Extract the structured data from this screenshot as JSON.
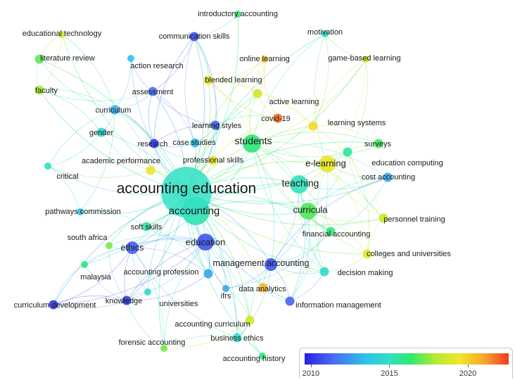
{
  "colors": {
    "y2010": "#3b3fe8",
    "y2015": "#2ad6c6",
    "y2020": "#f2e130",
    "y2022": "#ee3a20"
  },
  "legend": {
    "ticks": [
      {
        "label": "2010",
        "value": 2010
      },
      {
        "label": "2015",
        "value": 2015
      },
      {
        "label": "2020",
        "value": 2020
      }
    ],
    "range": [
      2009.6,
      2022.6
    ]
  },
  "terms": [
    {
      "id": "accounting-education",
      "label": "accounting education",
      "year": 2015.0,
      "weight": 10
    },
    {
      "id": "accounting",
      "label": "accounting",
      "year": 2015.3,
      "weight": 6
    },
    {
      "id": "students",
      "label": "students",
      "year": 2016.2,
      "weight": 5
    },
    {
      "id": "teaching",
      "label": "teaching",
      "year": 2015.1,
      "weight": 5
    },
    {
      "id": "curricula",
      "label": "curricula",
      "year": 2016.8,
      "weight": 4
    },
    {
      "id": "e-learning",
      "label": "e-learning",
      "year": 2019.2,
      "weight": 4
    },
    {
      "id": "education",
      "label": "education",
      "year": 2010.8,
      "weight": 4
    },
    {
      "id": "ethics",
      "label": "ethics",
      "year": 2011.2,
      "weight": 3
    },
    {
      "id": "introductory-accounting",
      "label": "introductory accounting",
      "year": 2016.5,
      "weight": 1
    },
    {
      "id": "educational-technology",
      "label": "educational technology",
      "year": 2018.8,
      "weight": 1
    },
    {
      "id": "communication-skills",
      "label": "communication skills",
      "year": 2010.8,
      "weight": 2
    },
    {
      "id": "motivation",
      "label": "motivation",
      "year": 2014.5,
      "weight": 1
    },
    {
      "id": "literature-review",
      "label": "literature review",
      "year": 2017.0,
      "weight": 2
    },
    {
      "id": "online-learning",
      "label": "online learning",
      "year": 2020.4,
      "weight": 1
    },
    {
      "id": "game-based-learning",
      "label": "game-based learning",
      "year": 2018.8,
      "weight": 1
    },
    {
      "id": "action-research",
      "label": "action research",
      "year": 2013.5,
      "weight": 1
    },
    {
      "id": "blended-learning",
      "label": "blended learning",
      "year": 2019.2,
      "weight": 2
    },
    {
      "id": "faculty",
      "label": "faculty",
      "year": 2017.8,
      "weight": 2
    },
    {
      "id": "assessment",
      "label": "assessment",
      "year": 2011.6,
      "weight": 2
    },
    {
      "id": "active-learning",
      "label": "active learning",
      "year": 2018.6,
      "weight": 2
    },
    {
      "id": "curriculum",
      "label": "curriculum",
      "year": 2013.0,
      "weight": 2
    },
    {
      "id": "covid-19",
      "label": "covid-19",
      "year": 2021.8,
      "weight": 2
    },
    {
      "id": "learning-styles",
      "label": "learning styles",
      "year": 2011.0,
      "weight": 2
    },
    {
      "id": "learning-systems",
      "label": "learning systems",
      "year": 2019.8,
      "weight": 2
    },
    {
      "id": "gender",
      "label": "gender",
      "year": 2014.4,
      "weight": 2
    },
    {
      "id": "research",
      "label": "research",
      "year": 2010.2,
      "weight": 2
    },
    {
      "id": "case-studies",
      "label": "case studies",
      "year": 2013.6,
      "weight": 2
    },
    {
      "id": "surveys",
      "label": "surveys",
      "year": 2016.6,
      "weight": 2
    },
    {
      "id": "academic-performance",
      "label": "academic performance",
      "year": 2019.4,
      "weight": 2
    },
    {
      "id": "professional-skills",
      "label": "professional skills",
      "year": 2019.3,
      "weight": 2
    },
    {
      "id": "education-computing",
      "label": "education computing",
      "year": 2015.6,
      "weight": 2
    },
    {
      "id": "critical",
      "label": "critical",
      "year": 2015.0,
      "weight": 1
    },
    {
      "id": "cost-accounting",
      "label": "cost accounting",
      "year": 2012.8,
      "weight": 2
    },
    {
      "id": "pathways-commission",
      "label": "pathways commission",
      "year": 2013.5,
      "weight": 1
    },
    {
      "id": "personnel-training",
      "label": "personnel training",
      "year": 2018.4,
      "weight": 2
    },
    {
      "id": "soft-skills",
      "label": "soft skills",
      "year": 2015.4,
      "weight": 2
    },
    {
      "id": "south-africa",
      "label": "south africa",
      "year": 2017.2,
      "weight": 1
    },
    {
      "id": "financial-accounting",
      "label": "financial accounting",
      "year": 2016.2,
      "weight": 2
    },
    {
      "id": "colleges-and-universities",
      "label": "colleges and universities",
      "year": 2019.2,
      "weight": 2
    },
    {
      "id": "management-accounting",
      "label": "management accounting",
      "year": 2010.8,
      "weight": 3
    },
    {
      "id": "accounting-profession",
      "label": "accounting profession",
      "year": 2012.8,
      "weight": 2
    },
    {
      "id": "malaysia",
      "label": "malaysia",
      "year": 2016.0,
      "weight": 1
    },
    {
      "id": "decision-making",
      "label": "decision making",
      "year": 2014.8,
      "weight": 2
    },
    {
      "id": "data-analytics",
      "label": "data analytics",
      "year": 2020.8,
      "weight": 2
    },
    {
      "id": "curriculum-development",
      "label": "curriculum development",
      "year": 2010.2,
      "weight": 2
    },
    {
      "id": "knowledge",
      "label": "knowledge",
      "year": 2010.2,
      "weight": 2
    },
    {
      "id": "universities",
      "label": "universities",
      "year": 2014.6,
      "weight": 1
    },
    {
      "id": "ifrs",
      "label": "ifrs",
      "year": 2012.8,
      "weight": 1
    },
    {
      "id": "information-management",
      "label": "information management",
      "year": 2011.2,
      "weight": 2
    },
    {
      "id": "accounting-curriculum",
      "label": "accounting curriculum",
      "year": 2018.6,
      "weight": 2
    },
    {
      "id": "forensic-accounting",
      "label": "forensic accounting",
      "year": 2017.2,
      "weight": 1
    },
    {
      "id": "business-ethics",
      "label": "business ethics",
      "year": 2014.8,
      "weight": 2
    },
    {
      "id": "accounting-history",
      "label": "accounting history",
      "year": 2016.0,
      "weight": 1
    }
  ],
  "links": [
    [
      "accounting-education",
      "accounting"
    ],
    [
      "accounting-education",
      "students"
    ],
    [
      "accounting-education",
      "teaching"
    ],
    [
      "accounting-education",
      "curricula"
    ],
    [
      "accounting-education",
      "e-learning"
    ],
    [
      "accounting-education",
      "education"
    ],
    [
      "accounting-education",
      "ethics"
    ],
    [
      "accounting-education",
      "introductory-accounting"
    ],
    [
      "accounting-education",
      "educational-technology"
    ],
    [
      "accounting-education",
      "communication-skills"
    ],
    [
      "accounting-education",
      "motivation"
    ],
    [
      "accounting-education",
      "literature-review"
    ],
    [
      "accounting-education",
      "online-learning"
    ],
    [
      "accounting-education",
      "game-based-learning"
    ],
    [
      "accounting-education",
      "action-research"
    ],
    [
      "accounting-education",
      "blended-learning"
    ],
    [
      "accounting-education",
      "faculty"
    ],
    [
      "accounting-education",
      "assessment"
    ],
    [
      "accounting-education",
      "active-learning"
    ],
    [
      "accounting-education",
      "curriculum"
    ],
    [
      "accounting-education",
      "covid-19"
    ],
    [
      "accounting-education",
      "learning-styles"
    ],
    [
      "accounting-education",
      "learning-systems"
    ],
    [
      "accounting-education",
      "gender"
    ],
    [
      "accounting-education",
      "research"
    ],
    [
      "accounting-education",
      "case-studies"
    ],
    [
      "accounting-education",
      "surveys"
    ],
    [
      "accounting-education",
      "academic-performance"
    ],
    [
      "accounting-education",
      "professional-skills"
    ],
    [
      "accounting-education",
      "education-computing"
    ],
    [
      "accounting-education",
      "critical"
    ],
    [
      "accounting-education",
      "cost-accounting"
    ],
    [
      "accounting-education",
      "pathways-commission"
    ],
    [
      "accounting-education",
      "personnel-training"
    ],
    [
      "accounting-education",
      "soft-skills"
    ],
    [
      "accounting-education",
      "south-africa"
    ],
    [
      "accounting-education",
      "financial-accounting"
    ],
    [
      "accounting-education",
      "colleges-and-universities"
    ],
    [
      "accounting-education",
      "management-accounting"
    ],
    [
      "accounting-education",
      "accounting-profession"
    ],
    [
      "accounting-education",
      "malaysia"
    ],
    [
      "accounting-education",
      "decision-making"
    ],
    [
      "accounting-education",
      "data-analytics"
    ],
    [
      "accounting-education",
      "curriculum-development"
    ],
    [
      "accounting-education",
      "knowledge"
    ],
    [
      "accounting-education",
      "universities"
    ],
    [
      "accounting-education",
      "ifrs"
    ],
    [
      "accounting-education",
      "information-management"
    ],
    [
      "accounting-education",
      "accounting-curriculum"
    ],
    [
      "accounting-education",
      "forensic-accounting"
    ],
    [
      "accounting-education",
      "business-ethics"
    ],
    [
      "accounting-education",
      "accounting-history"
    ],
    [
      "students",
      "teaching"
    ],
    [
      "students",
      "e-learning"
    ],
    [
      "students",
      "curricula"
    ],
    [
      "students",
      "learning-systems"
    ],
    [
      "students",
      "surveys"
    ],
    [
      "students",
      "education-computing"
    ],
    [
      "students",
      "active-learning"
    ],
    [
      "students",
      "covid-19"
    ],
    [
      "students",
      "online-learning"
    ],
    [
      "students",
      "game-based-learning"
    ],
    [
      "students",
      "motivation"
    ],
    [
      "students",
      "blended-learning"
    ],
    [
      "students",
      "personnel-training"
    ],
    [
      "students",
      "colleges-and-universities"
    ],
    [
      "students",
      "cost-accounting"
    ],
    [
      "students",
      "financial-accounting"
    ],
    [
      "students",
      "management-accounting"
    ],
    [
      "students",
      "decision-making"
    ],
    [
      "e-learning",
      "learning-systems"
    ],
    [
      "e-learning",
      "education-computing"
    ],
    [
      "e-learning",
      "surveys"
    ],
    [
      "e-learning",
      "personnel-training"
    ],
    [
      "e-learning",
      "colleges-and-universities"
    ],
    [
      "e-learning",
      "curricula"
    ],
    [
      "e-learning",
      "teaching"
    ],
    [
      "e-learning",
      "cost-accounting"
    ],
    [
      "e-learning",
      "motivation"
    ],
    [
      "e-learning",
      "game-based-learning"
    ],
    [
      "e-learning",
      "information-management"
    ],
    [
      "e-learning",
      "decision-making"
    ],
    [
      "curricula",
      "teaching"
    ],
    [
      "curricula",
      "personnel-training"
    ],
    [
      "curricula",
      "colleges-and-universities"
    ],
    [
      "curricula",
      "financial-accounting"
    ],
    [
      "curricula",
      "management-accounting"
    ],
    [
      "curricula",
      "decision-making"
    ],
    [
      "curricula",
      "information-management"
    ],
    [
      "curricula",
      "data-analytics"
    ],
    [
      "curricula",
      "cost-accounting"
    ],
    [
      "curricula",
      "education-computing"
    ],
    [
      "teaching",
      "management-accounting"
    ],
    [
      "teaching",
      "cost-accounting"
    ],
    [
      "teaching",
      "financial-accounting"
    ],
    [
      "teaching",
      "decision-making"
    ],
    [
      "teaching",
      "information-management"
    ],
    [
      "education",
      "ethics"
    ],
    [
      "education",
      "accounting-profession"
    ],
    [
      "education",
      "knowledge"
    ],
    [
      "education",
      "curriculum-development"
    ],
    [
      "education",
      "malaysia"
    ],
    [
      "education",
      "universities"
    ],
    [
      "education",
      "south-africa"
    ],
    [
      "education",
      "soft-skills"
    ],
    [
      "education",
      "forensic-accounting"
    ],
    [
      "education",
      "accounting-curriculum"
    ],
    [
      "education",
      "ifrs"
    ],
    [
      "education",
      "business-ethics"
    ],
    [
      "ethics",
      "knowledge"
    ],
    [
      "ethics",
      "curriculum-development"
    ],
    [
      "ethics",
      "malaysia"
    ],
    [
      "ethics",
      "accounting-profession"
    ],
    [
      "ethics",
      "business-ethics"
    ],
    [
      "ethics",
      "south-africa"
    ],
    [
      "ethics",
      "universities"
    ],
    [
      "ethics",
      "forensic-accounting"
    ],
    [
      "knowledge",
      "curriculum-development"
    ],
    [
      "knowledge",
      "malaysia"
    ],
    [
      "knowledge",
      "accounting-profession"
    ],
    [
      "knowledge",
      "universities"
    ],
    [
      "knowledge",
      "forensic-accounting"
    ],
    [
      "knowledge",
      "south-africa"
    ],
    [
      "curriculum",
      "faculty"
    ],
    [
      "curriculum",
      "literature-review"
    ],
    [
      "curriculum",
      "educational-technology"
    ],
    [
      "curriculum",
      "gender"
    ],
    [
      "curriculum",
      "assessment"
    ],
    [
      "curriculum",
      "research"
    ],
    [
      "curriculum",
      "critical"
    ],
    [
      "curriculum",
      "academic-performance"
    ],
    [
      "curriculum",
      "action-research"
    ],
    [
      "curriculum",
      "pathways-commission"
    ],
    [
      "assessment",
      "research"
    ],
    [
      "assessment",
      "action-research"
    ],
    [
      "assessment",
      "communication-skills"
    ],
    [
      "assessment",
      "faculty"
    ],
    [
      "assessment",
      "learning-styles"
    ],
    [
      "assessment",
      "case-studies"
    ],
    [
      "communication-skills",
      "research"
    ],
    [
      "communication-skills",
      "learning-styles"
    ],
    [
      "communication-skills",
      "case-studies"
    ],
    [
      "communication-skills",
      "professional-skills"
    ],
    [
      "communication-skills",
      "introductory-accounting"
    ],
    [
      "communication-skills",
      "blended-learning"
    ],
    [
      "research",
      "case-studies"
    ],
    [
      "research",
      "learning-styles"
    ],
    [
      "research",
      "professional-skills"
    ],
    [
      "research",
      "academic-performance"
    ],
    [
      "learning-styles",
      "active-learning"
    ],
    [
      "learning-styles",
      "case-studies"
    ],
    [
      "learning-styles",
      "professional-skills"
    ],
    [
      "learning-styles",
      "covid-19"
    ],
    [
      "blended-learning",
      "online-learning"
    ],
    [
      "blended-learning",
      "active-learning"
    ],
    [
      "blended-learning",
      "covid-19"
    ],
    [
      "blended-learning",
      "learning-systems"
    ],
    [
      "online-learning",
      "covid-19"
    ],
    [
      "online-learning",
      "active-learning"
    ],
    [
      "active-learning",
      "covid-19"
    ],
    [
      "active-learning",
      "learning-systems"
    ],
    [
      "motivation",
      "game-based-learning"
    ],
    [
      "motivation",
      "learning-systems"
    ],
    [
      "game-based-learning",
      "learning-systems"
    ],
    [
      "game-based-learning",
      "education-computing"
    ],
    [
      "literature-review",
      "faculty"
    ],
    [
      "literature-review",
      "educational-technology"
    ],
    [
      "faculty",
      "educational-technology"
    ],
    [
      "faculty",
      "gender"
    ],
    [
      "gender",
      "academic-performance"
    ],
    [
      "gender",
      "critical"
    ],
    [
      "academic-performance",
      "professional-skills"
    ],
    [
      "academic-performance",
      "critical"
    ],
    [
      "pathways-commission",
      "critical"
    ],
    [
      "pathways-commission",
      "soft-skills"
    ],
    [
      "soft-skills",
      "professional-skills"
    ],
    [
      "soft-skills",
      "accounting-profession"
    ],
    [
      "management-accounting",
      "data-analytics"
    ],
    [
      "management-accounting",
      "information-management"
    ],
    [
      "management-accounting",
      "decision-making"
    ],
    [
      "management-accounting",
      "cost-accounting"
    ],
    [
      "management-accounting",
      "financial-accounting"
    ],
    [
      "management-accounting",
      "ifrs"
    ],
    [
      "management-accounting",
      "accounting-curriculum"
    ],
    [
      "management-accounting",
      "business-ethics"
    ],
    [
      "data-analytics",
      "information-management"
    ],
    [
      "data-analytics",
      "decision-making"
    ],
    [
      "data-analytics",
      "accounting-curriculum"
    ],
    [
      "financial-accounting",
      "ifrs"
    ],
    [
      "financial-accounting",
      "cost-accounting"
    ],
    [
      "decision-making",
      "information-management"
    ],
    [
      "decision-making",
      "colleges-and-universities"
    ],
    [
      "accounting-curriculum",
      "business-ethics"
    ],
    [
      "accounting-curriculum",
      "accounting-history"
    ],
    [
      "accounting-curriculum",
      "forensic-accounting"
    ],
    [
      "accounting-curriculum",
      "ifrs"
    ],
    [
      "business-ethics",
      "accounting-history"
    ],
    [
      "business-ethics",
      "forensic-accounting"
    ],
    [
      "accounting",
      "accounting-profession"
    ],
    [
      "accounting",
      "soft-skills"
    ],
    [
      "accounting",
      "ethics"
    ],
    [
      "accounting",
      "education"
    ],
    [
      "accounting",
      "curricula"
    ],
    [
      "accounting",
      "students"
    ],
    [
      "accounting",
      "teaching"
    ],
    [
      "accounting",
      "ifrs"
    ],
    [
      "curriculum-development",
      "malaysia"
    ],
    [
      "curriculum-development",
      "universities"
    ],
    [
      "colleges-and-universities",
      "personnel-training"
    ],
    [
      "colleges-and-universities",
      "education-computing"
    ],
    [
      "personnel-training",
      "education-computing"
    ],
    [
      "personnel-training",
      "learning-systems"
    ],
    [
      "surveys",
      "education-computing"
    ],
    [
      "surveys",
      "learning-systems"
    ]
  ]
}
